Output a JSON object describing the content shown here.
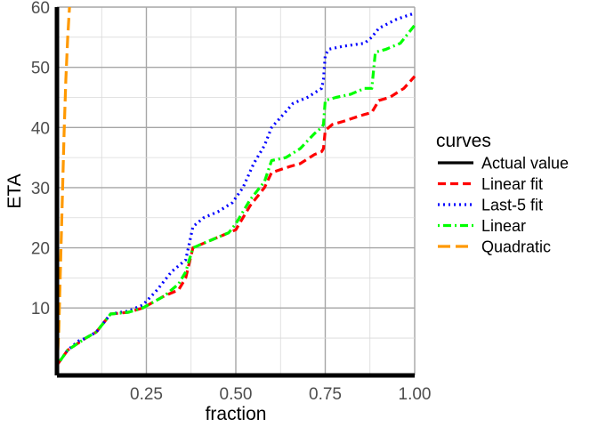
{
  "chart_data": {
    "type": "line",
    "xlabel": "fraction",
    "ylabel": "ETA",
    "xlim": [
      0.0,
      1.0
    ],
    "ylim": [
      0,
      60
    ],
    "x_ticks": [
      0.25,
      0.5,
      0.75,
      1.0
    ],
    "x_tick_labels": [
      "0.25",
      "0.50",
      "0.75",
      "1.00"
    ],
    "y_ticks": [
      10,
      20,
      30,
      40,
      50,
      60
    ],
    "y_tick_labels": [
      "10",
      "20",
      "30",
      "40",
      "50",
      "60"
    ],
    "grid": true,
    "legend_title": "curves",
    "legend_position": "right",
    "series": [
      {
        "name": "Actual value",
        "color": "#000000",
        "dash": "solid",
        "x": [
          0.0,
          0.0
        ],
        "y": [
          0,
          60
        ]
      },
      {
        "name": "Linear fit",
        "color": "#ff0000",
        "dash": "dashed",
        "x": [
          0.0,
          0.03,
          0.08,
          0.11,
          0.15,
          0.2,
          0.24,
          0.3,
          0.34,
          0.36,
          0.38,
          0.42,
          0.48,
          0.5,
          0.54,
          0.58,
          0.6,
          0.65,
          0.68,
          0.72,
          0.74,
          0.745,
          0.75,
          0.77,
          0.8,
          0.85,
          0.88,
          0.9,
          0.93,
          0.97,
          1.0
        ],
        "y": [
          0.5,
          3,
          5,
          6,
          9,
          9.3,
          10,
          12,
          13,
          15,
          20,
          21,
          22.5,
          23,
          27,
          30,
          32.5,
          33.5,
          34,
          35.5,
          36,
          36.5,
          39.5,
          40.5,
          41,
          42,
          42.5,
          44.5,
          45,
          46.5,
          48.5
        ]
      },
      {
        "name": "Last-5 fit",
        "color": "#0000ff",
        "dash": "dotted",
        "x": [
          0.0,
          0.03,
          0.06,
          0.08,
          0.11,
          0.15,
          0.2,
          0.24,
          0.28,
          0.32,
          0.36,
          0.38,
          0.41,
          0.45,
          0.49,
          0.52,
          0.55,
          0.58,
          0.6,
          0.63,
          0.66,
          0.7,
          0.74,
          0.745,
          0.75,
          0.76,
          0.8,
          0.86,
          0.88,
          0.9,
          0.95,
          1.0
        ],
        "y": [
          0.5,
          3,
          4.5,
          5,
          6,
          9,
          9.5,
          10.5,
          13,
          16,
          18,
          23.5,
          25,
          26,
          27.5,
          30,
          34,
          37,
          40,
          42,
          44,
          45,
          46.5,
          48,
          52,
          53,
          53.5,
          54,
          55,
          56.5,
          58,
          59
        ]
      },
      {
        "name": "Linear",
        "color": "#00ff00",
        "dash": "dotdash",
        "x": [
          0.0,
          0.03,
          0.08,
          0.11,
          0.15,
          0.2,
          0.24,
          0.3,
          0.34,
          0.36,
          0.38,
          0.42,
          0.48,
          0.5,
          0.54,
          0.58,
          0.6,
          0.64,
          0.68,
          0.72,
          0.74,
          0.745,
          0.75,
          0.78,
          0.82,
          0.86,
          0.88,
          0.89,
          0.92,
          0.96,
          1.0
        ],
        "y": [
          0.5,
          3,
          5,
          6,
          9,
          9.3,
          10,
          12,
          14,
          16,
          20,
          21,
          22.5,
          24,
          28,
          31,
          34.5,
          35,
          36.5,
          39,
          40,
          40.5,
          44.5,
          45,
          45.5,
          46.5,
          46.5,
          52.5,
          53,
          54,
          57
        ]
      },
      {
        "name": "Quadratic",
        "color": "#ff9900",
        "dash": "longdash",
        "x": [
          0.0,
          0.005,
          0.01,
          0.015,
          0.02,
          0.025,
          0.03,
          0.035
        ],
        "y": [
          0,
          6,
          17,
          28,
          39,
          48,
          55,
          60
        ]
      }
    ]
  }
}
